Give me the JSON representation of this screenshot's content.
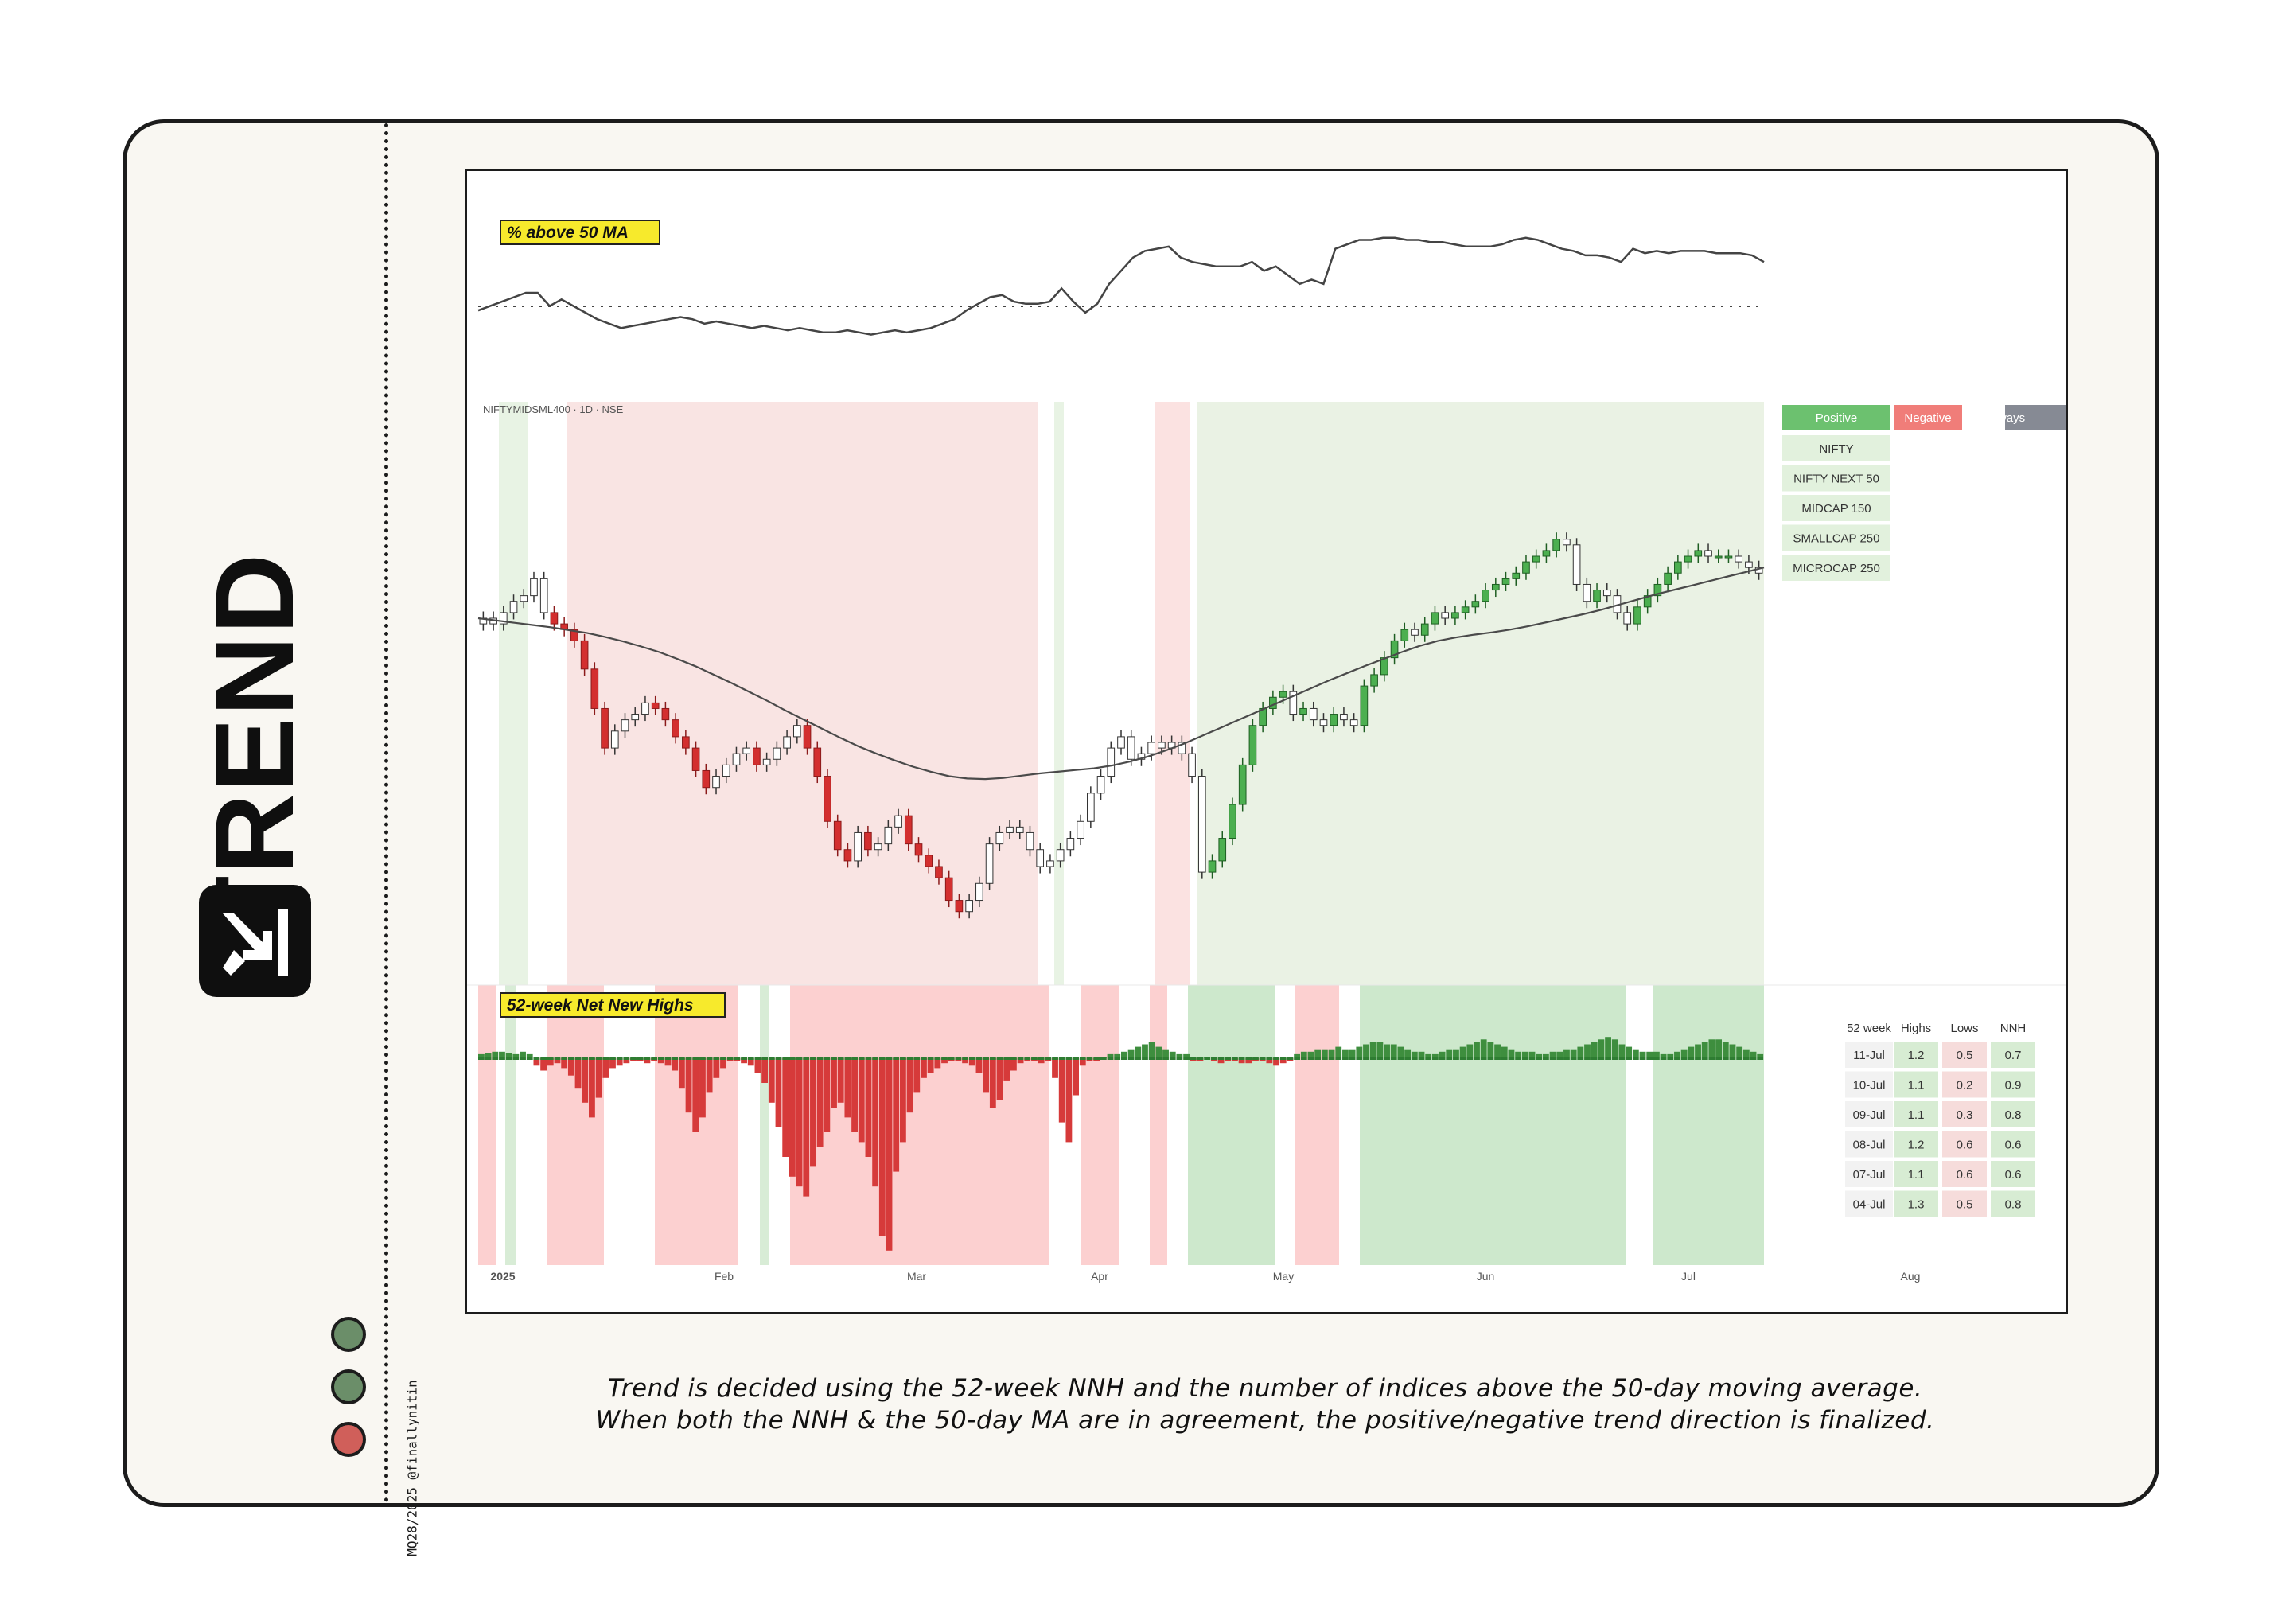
{
  "page": {
    "title": "TREND",
    "handle": "MQ28/2025 @finallynitin",
    "caption_line1": "Trend is decided using the 52-week NNH and the number of indices above the 50-day moving average.",
    "caption_line2": "When both the NNH & the 50-day MA are in agreement, the positive/negative trend direction is finalized.",
    "status_dots": [
      "#6b8e69",
      "#6b8e69",
      "#d05f5a"
    ],
    "colors": {
      "positive": "#6cc16f",
      "negative": "#f07d79",
      "sideways": "#868a94",
      "up_candle": "#4caf50",
      "down_candle": "#d32f2f"
    }
  },
  "chart_data": [
    {
      "type": "line",
      "title": "% above 50 MA",
      "reference_line": "dotted",
      "values": [
        48,
        50,
        52,
        54,
        56,
        56,
        50,
        53,
        50,
        47,
        44,
        42,
        40,
        41,
        42,
        43,
        44,
        45,
        44,
        42,
        43,
        42,
        41,
        40,
        41,
        40,
        39,
        40,
        39,
        38,
        38,
        39,
        38,
        37,
        38,
        39,
        38,
        39,
        40,
        42,
        44,
        48,
        51,
        54,
        55,
        52,
        51,
        51,
        52,
        58,
        52,
        47,
        51,
        60,
        66,
        72,
        75,
        76,
        77,
        72,
        70,
        69,
        68,
        68,
        68,
        70,
        66,
        68,
        64,
        60,
        62,
        60,
        76,
        78,
        80,
        80,
        81,
        81,
        80,
        80,
        79,
        79,
        78,
        77,
        77,
        77,
        78,
        80,
        81,
        80,
        78,
        76,
        75,
        73,
        73,
        72,
        70,
        76,
        74,
        75,
        74,
        75,
        75,
        75,
        74,
        74,
        74,
        73,
        70
      ],
      "ylim": [
        30,
        95
      ]
    },
    {
      "type": "candlestick",
      "title": "NIFTYMIDSML400 · 1D · NSE",
      "x_ticks": [
        "2025",
        "Feb",
        "Mar",
        "Apr",
        "May",
        "Jun",
        "Jul",
        "Aug"
      ],
      "ylim": [
        -10,
        100
      ],
      "closes": [
        56,
        55,
        57,
        59,
        60,
        63,
        57,
        55,
        54,
        52,
        47,
        40,
        33,
        36,
        38,
        39,
        41,
        40,
        38,
        35,
        33,
        29,
        26,
        28,
        30,
        32,
        33,
        30,
        31,
        33,
        35,
        37,
        33,
        28,
        20,
        15,
        13,
        18,
        15,
        16,
        19,
        21,
        16,
        14,
        12,
        10,
        6,
        4,
        6,
        9,
        16,
        18,
        19,
        18,
        15,
        12,
        13,
        15,
        17,
        20,
        25,
        28,
        33,
        35,
        31,
        32,
        34,
        33,
        34,
        32,
        28,
        11,
        13,
        17,
        23,
        30,
        37,
        40,
        42,
        43,
        39,
        40,
        38,
        37,
        39,
        38,
        37,
        44,
        46,
        49,
        52,
        54,
        53,
        55,
        57,
        56,
        57,
        58,
        59,
        61,
        62,
        63,
        64,
        66,
        67,
        68,
        70,
        69,
        62,
        59,
        61,
        60,
        57,
        55,
        58,
        60,
        62,
        64,
        66,
        67,
        68,
        67,
        67,
        67,
        66,
        65,
        64
      ],
      "ma50": [
        56,
        55.6,
        55.2,
        54.8,
        54.4,
        53.9,
        53.4,
        52.7,
        51.9,
        51,
        50,
        48.8,
        47.5,
        46,
        44.5,
        42.9,
        41.3,
        39.6,
        38,
        36.4,
        34.8,
        33.3,
        32,
        30.8,
        29.7,
        28.8,
        28,
        27.6,
        27.5,
        27.7,
        28.1,
        28.5,
        28.8,
        29.1,
        29.4,
        29.9,
        30.6,
        31.5,
        32.6,
        33.8,
        35.2,
        36.6,
        38,
        39.4,
        40.8,
        42.2,
        43.6,
        45,
        46.3,
        47.6,
        48.8,
        50,
        51.1,
        52,
        52.6,
        53.1,
        53.5,
        54,
        54.6,
        55.3,
        56,
        56.7,
        57.5,
        58.4,
        59.3,
        60.2,
        61,
        61.8,
        62.6,
        63.4,
        64.2,
        65
      ]
    },
    {
      "type": "bar",
      "title": "52-week Net New Highs",
      "values": [
        1,
        1.5,
        2,
        2,
        1.5,
        1,
        2,
        1,
        -3,
        -5,
        -3,
        -2,
        -4,
        -7,
        -12,
        -18,
        -24,
        -16,
        -8,
        -4,
        -3,
        -2,
        -1,
        -1,
        -2,
        -1,
        -2,
        -3,
        -5,
        -12,
        -22,
        -30,
        -24,
        -14,
        -8,
        -4,
        -1,
        -1,
        -2,
        -3,
        -6,
        -10,
        -18,
        -28,
        -40,
        -48,
        -52,
        -56,
        -44,
        -36,
        -30,
        -20,
        -18,
        -24,
        -30,
        -34,
        -40,
        -52,
        -72,
        -78,
        -46,
        -34,
        -22,
        -14,
        -8,
        -6,
        -4,
        -2,
        -1,
        -1,
        -2,
        -3,
        -6,
        -14,
        -20,
        -17,
        -9,
        -5,
        -2,
        -1,
        -1,
        -2,
        -1,
        -8,
        -26,
        -34,
        -15,
        -3,
        -1,
        -1,
        0,
        1,
        1,
        2,
        3,
        4,
        5,
        6,
        4,
        3,
        2,
        1,
        1,
        -1,
        -1,
        0,
        -1,
        -2,
        -1,
        -1,
        -2,
        -2,
        -1,
        -1,
        -2,
        -3,
        -2,
        -1,
        1,
        2,
        2,
        3,
        3,
        3,
        4,
        3,
        3,
        4,
        5,
        6,
        6,
        5,
        5,
        4,
        3,
        2,
        2,
        1,
        1,
        2,
        3,
        3,
        4,
        5,
        6,
        7,
        6,
        5,
        4,
        3,
        2,
        2,
        2,
        1,
        1,
        2,
        2,
        3,
        3,
        4,
        5,
        6,
        7,
        8,
        7,
        5,
        4,
        3,
        2,
        2,
        2,
        1,
        1,
        2,
        3,
        4,
        5,
        6,
        7,
        7,
        6,
        5,
        4,
        3,
        2,
        1
      ]
    }
  ],
  "legend": {
    "headers": [
      "Positive",
      "Negative",
      "Sideways"
    ],
    "indices": [
      "NIFTY",
      "NIFTY NEXT 50",
      "MIDCAP 150",
      "SMALLCAP 250",
      "MICROCAP 250"
    ]
  },
  "nnh_table": {
    "headers": [
      "52 week",
      "Highs",
      "Lows",
      "NNH"
    ],
    "rows": [
      [
        "11-Jul",
        "1.2",
        "0.5",
        "0.7"
      ],
      [
        "10-Jul",
        "1.1",
        "0.2",
        "0.9"
      ],
      [
        "09-Jul",
        "1.1",
        "0.3",
        "0.8"
      ],
      [
        "08-Jul",
        "1.2",
        "0.6",
        "0.6"
      ],
      [
        "07-Jul",
        "1.1",
        "0.6",
        "0.6"
      ],
      [
        "04-Jul",
        "1.3",
        "0.5",
        "0.8"
      ]
    ]
  }
}
